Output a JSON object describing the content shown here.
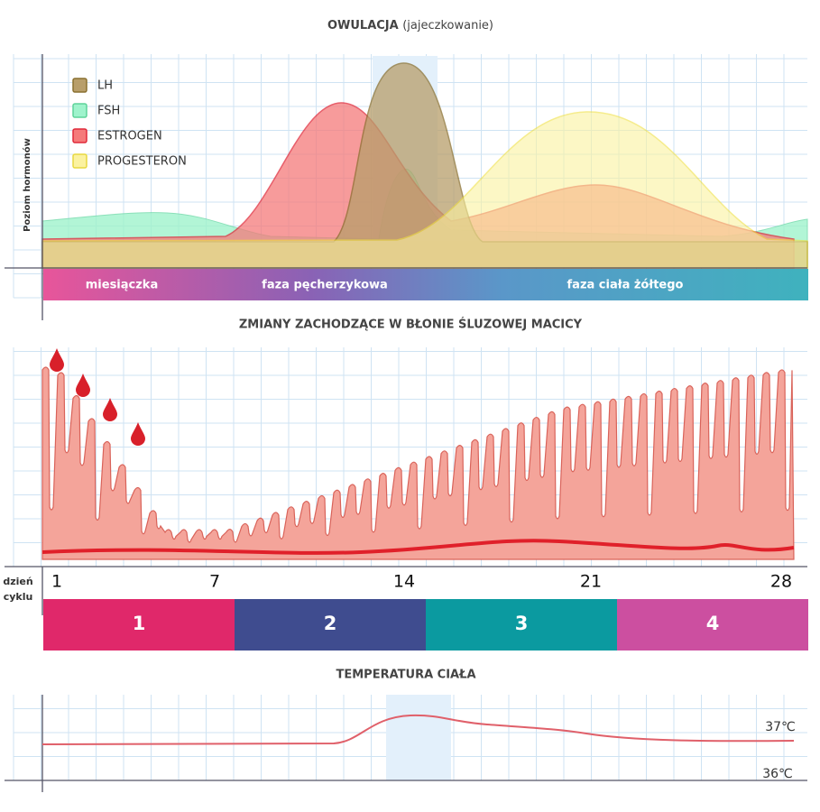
{
  "hormones": {
    "title": "OWULACJA",
    "subtitle": "(jajeczkowanie)",
    "y_label": "Poziom hormonów",
    "legend": [
      "LH",
      "FSH",
      "ESTROGEN",
      "PROGESTERON"
    ],
    "phases": [
      "miesiączka",
      "faza pęcherzykowa",
      "faza ciała żółtego"
    ]
  },
  "endometrium": {
    "title": "ZMIANY ZACHODZĄCE W BŁONIE ŚLUZOWEJ MACICY",
    "day_label": [
      "dzień",
      "cyklu"
    ],
    "days": [
      "1",
      "7",
      "14",
      "21",
      "28"
    ],
    "stages": [
      "1",
      "2",
      "3",
      "4"
    ]
  },
  "temperature": {
    "title": "TEMPERATURA CIAŁA",
    "labels": [
      "37℃",
      "36℃"
    ]
  }
}
